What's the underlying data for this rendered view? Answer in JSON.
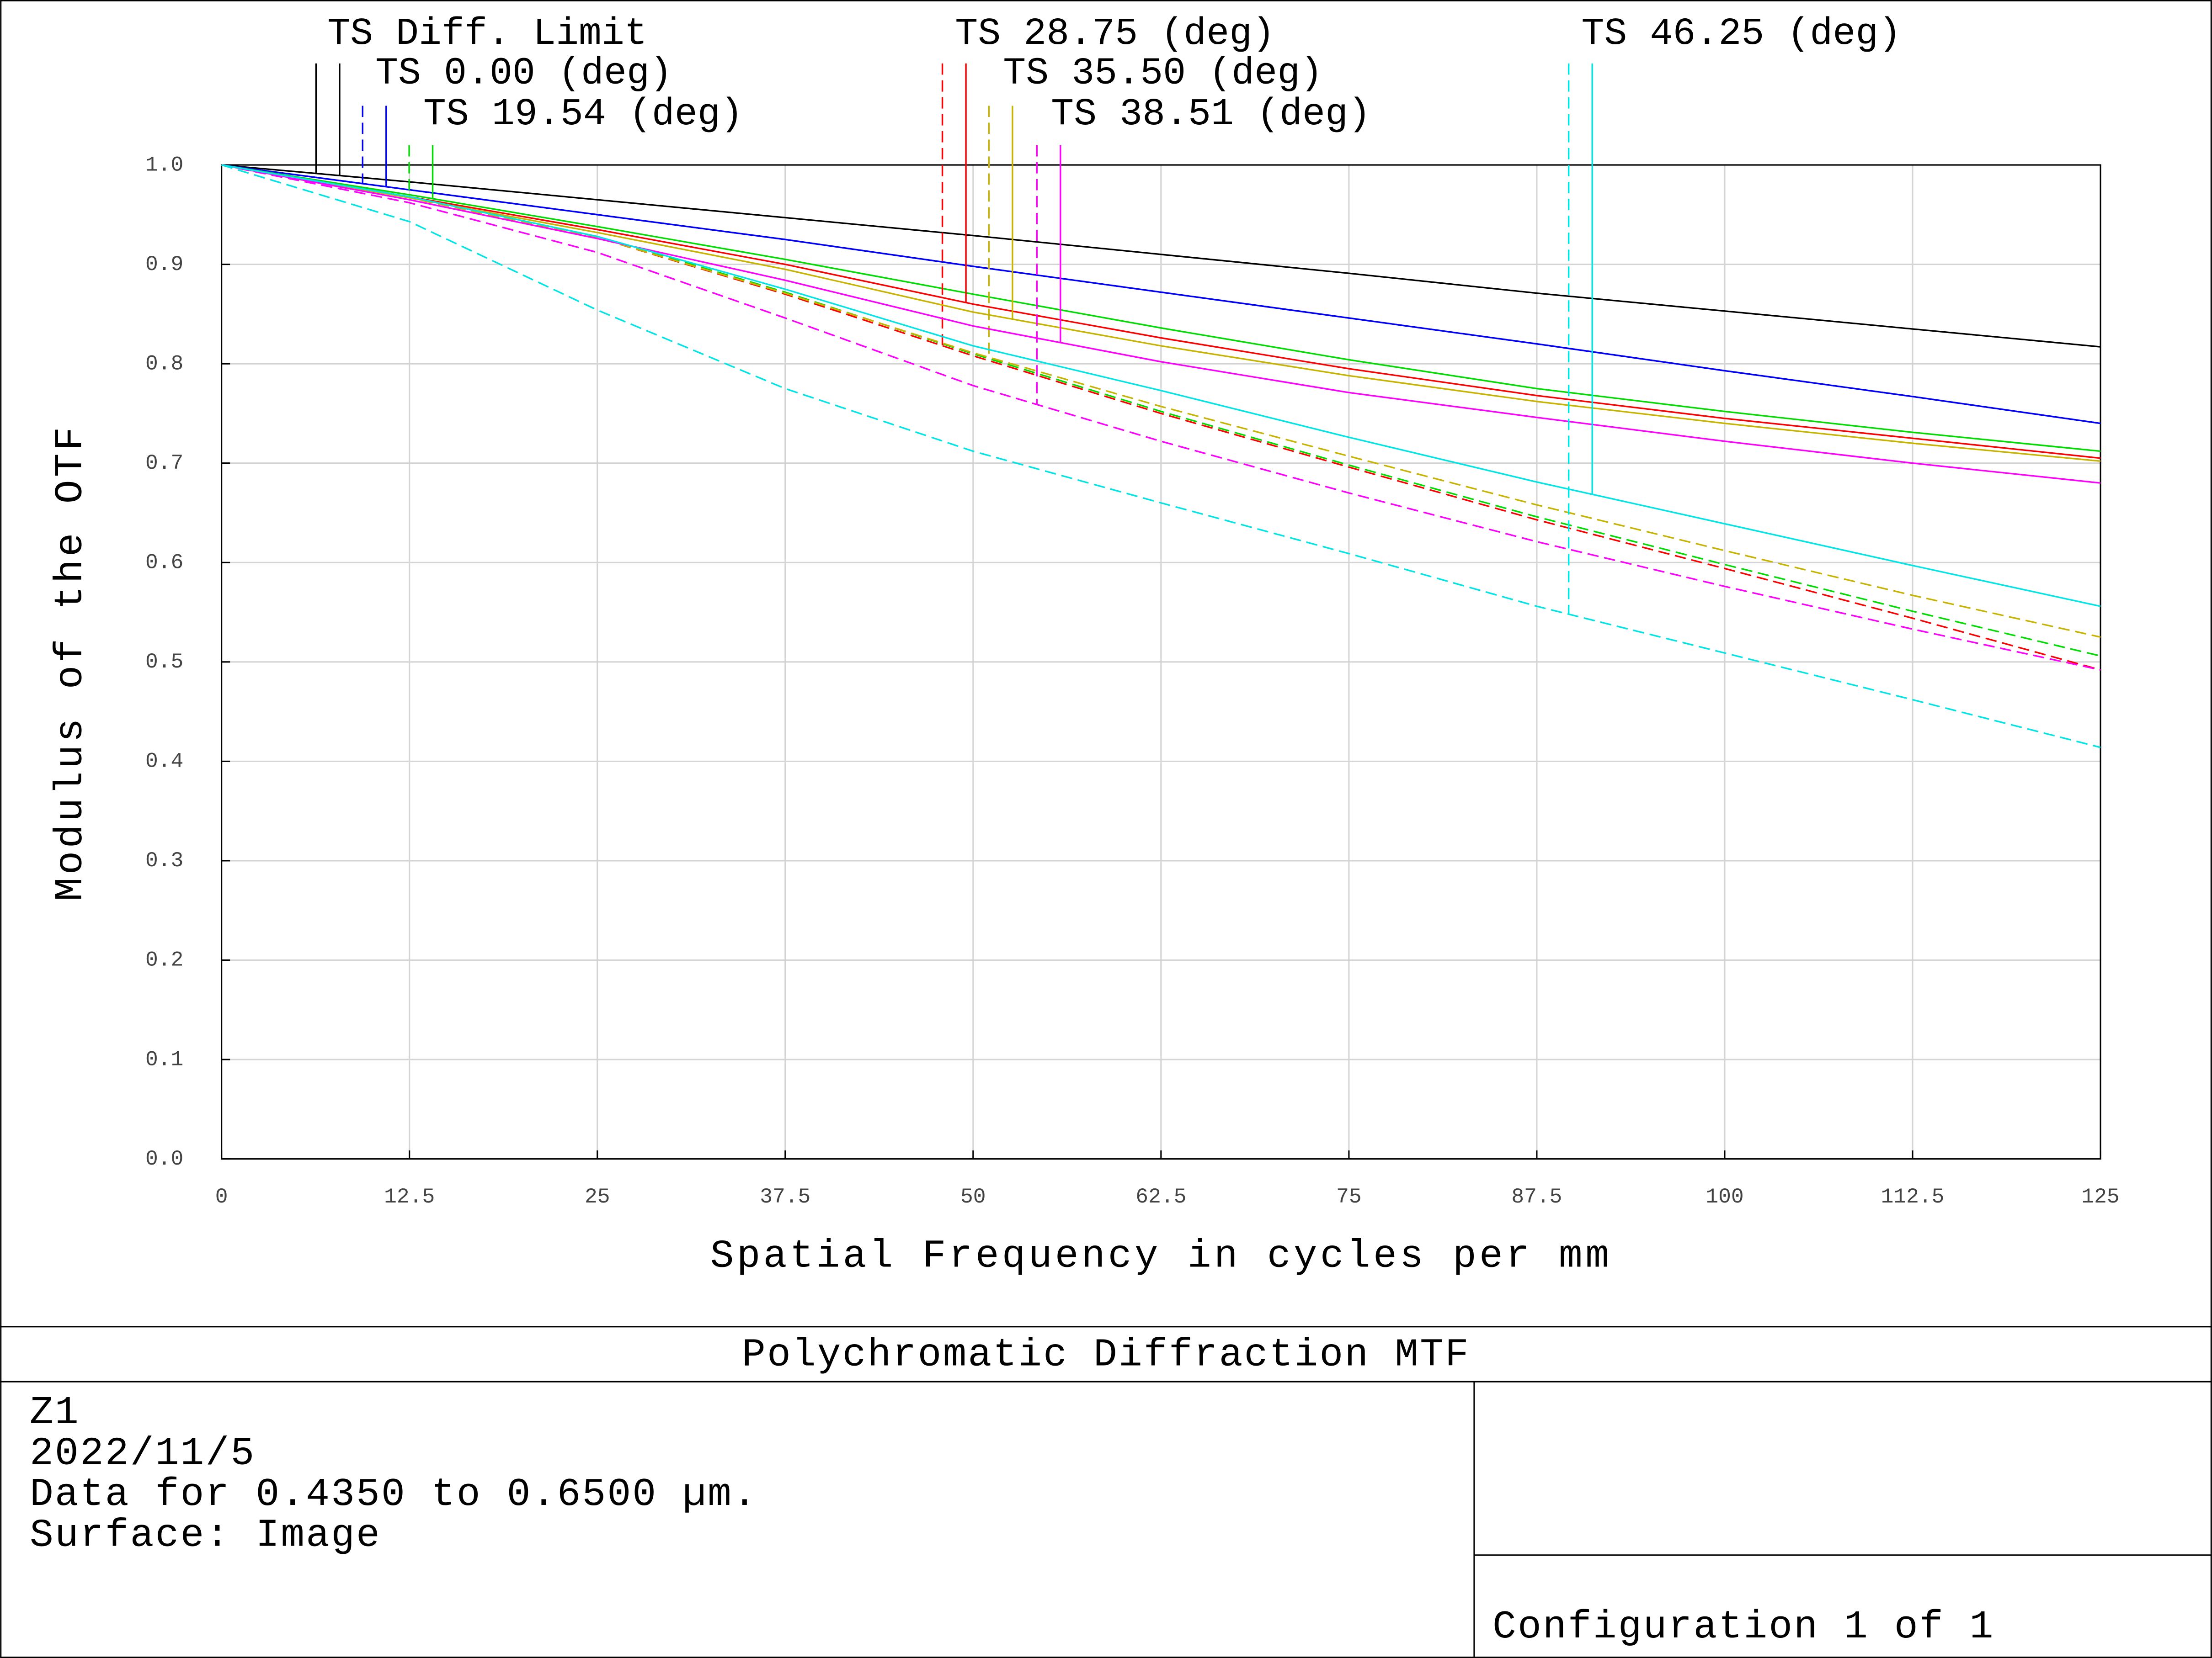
{
  "chart_data": {
    "type": "line",
    "title": "Polychromatic Diffraction MTF",
    "xlabel": "Spatial Frequency in cycles per mm",
    "ylabel": "Modulus of the OTF",
    "notes": [
      "Z1",
      "2022/11/5",
      "Data for 0.4350 to 0.6500 µm.",
      "Surface: Image"
    ],
    "configuration": "Configuration 1 of 1",
    "grid": true,
    "xlim": [
      0,
      125
    ],
    "ylim": [
      0,
      1
    ],
    "xticks": [
      0,
      12.5,
      25,
      37.5,
      50,
      62.5,
      75,
      87.5,
      100,
      112.5,
      125
    ],
    "yticks": [
      {
        "value": 0,
        "label": "0.0"
      },
      0.1,
      0.2,
      0.3,
      0.4,
      0.5,
      0.6,
      0.7,
      0.8,
      0.9,
      {
        "value": 1,
        "label": "1.0"
      }
    ],
    "x": [
      0,
      12.5,
      25,
      37.5,
      50,
      62.5,
      75,
      87.5,
      100,
      112.5,
      125
    ],
    "series": [
      {
        "name": "TS Diff. Limit",
        "color": "#000000",
        "values": [
          1,
          0.983,
          0.965,
          0.947,
          0.929,
          0.91,
          0.891,
          0.871,
          0.853,
          0.835,
          0.817
        ]
      },
      {
        "name": "TS 0.00 (deg)",
        "color": "#0000ff",
        "tangential": [
          1,
          0.975,
          0.95,
          0.925,
          0.898,
          0.872,
          0.846,
          0.82,
          0.793,
          0.767,
          0.74
        ],
        "sagittal": [
          1,
          0.975,
          0.95,
          0.925,
          0.898,
          0.872,
          0.846,
          0.82,
          0.793,
          0.767,
          0.74
        ]
      },
      {
        "name": "TS 19.54 (deg)",
        "color": "#00dd00",
        "tangential": [
          1,
          0.97,
          0.938,
          0.905,
          0.87,
          0.836,
          0.804,
          0.775,
          0.752,
          0.731,
          0.712
        ],
        "sagittal": [
          1,
          0.968,
          0.928,
          0.872,
          0.81,
          0.752,
          0.698,
          0.646,
          0.598,
          0.551,
          0.506
        ]
      },
      {
        "name": "TS 28.75 (deg)",
        "color": "#ff0000",
        "tangential": [
          1,
          0.968,
          0.935,
          0.9,
          0.86,
          0.826,
          0.795,
          0.768,
          0.745,
          0.725,
          0.705
        ],
        "sagittal": [
          1,
          0.967,
          0.927,
          0.87,
          0.808,
          0.75,
          0.696,
          0.643,
          0.594,
          0.544,
          0.492
        ]
      },
      {
        "name": "TS 35.50 (deg)",
        "color": "#c8b400",
        "tangential": [
          1,
          0.967,
          0.932,
          0.895,
          0.852,
          0.818,
          0.788,
          0.762,
          0.74,
          0.72,
          0.702
        ],
        "sagittal": [
          1,
          0.967,
          0.927,
          0.871,
          0.811,
          0.757,
          0.707,
          0.658,
          0.612,
          0.567,
          0.525
        ]
      },
      {
        "name": "TS 38.51 (deg)",
        "color": "#ff00ff",
        "tangential": [
          1,
          0.965,
          0.926,
          0.884,
          0.838,
          0.802,
          0.771,
          0.746,
          0.722,
          0.7,
          0.68
        ],
        "sagittal": [
          1,
          0.962,
          0.912,
          0.846,
          0.778,
          0.722,
          0.67,
          0.621,
          0.576,
          0.533,
          0.492
        ]
      },
      {
        "name": "TS 46.25 (deg)",
        "color": "#00e5e5",
        "tangential": [
          1,
          0.968,
          0.928,
          0.875,
          0.818,
          0.773,
          0.726,
          0.681,
          0.639,
          0.597,
          0.556
        ],
        "sagittal": [
          1,
          0.943,
          0.854,
          0.775,
          0.712,
          0.66,
          0.609,
          0.556,
          0.509,
          0.462,
          0.414
        ]
      }
    ]
  }
}
